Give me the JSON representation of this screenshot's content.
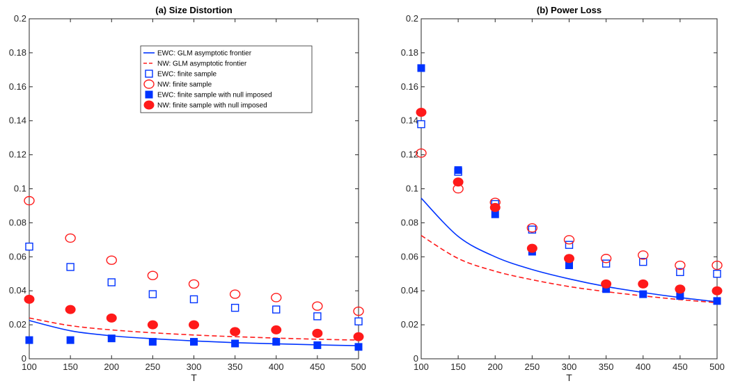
{
  "colors": {
    "ewc": "#0033ff",
    "nw": "#ff1a1a",
    "axis": "#262626"
  },
  "legend": {
    "placement": "upper-right of panel (a)",
    "items": [
      {
        "label": "EWC: GLM asymptotic frontier",
        "marker": "solid-line",
        "color": "#0033ff"
      },
      {
        "label": "NW: GLM asymptotic frontier",
        "marker": "dashed-line",
        "color": "#ff1a1a"
      },
      {
        "label": "EWC: finite sample",
        "marker": "open-square",
        "color": "#0033ff"
      },
      {
        "label": "NW: finite sample",
        "marker": "open-circle",
        "color": "#ff1a1a"
      },
      {
        "label": "EWC: finite sample with null imposed",
        "marker": "filled-square",
        "color": "#0033ff"
      },
      {
        "label": "NW: finite sample with null imposed",
        "marker": "filled-circle",
        "color": "#ff1a1a"
      }
    ]
  },
  "chart_data": [
    {
      "type": "scatter",
      "title": "(a) Size Distortion",
      "xlabel": "T",
      "ylabel": "",
      "xlim": [
        100,
        500
      ],
      "ylim": [
        0,
        0.2
      ],
      "xticks": [
        "100",
        "150",
        "200",
        "250",
        "300",
        "350",
        "400",
        "450",
        "500"
      ],
      "yticks": [
        "0",
        "0.02",
        "0.04",
        "0.06",
        "0.08",
        "0.1",
        "0.12",
        "0.14",
        "0.16",
        "0.18",
        "0.2"
      ],
      "grid": false,
      "x": [
        100,
        150,
        200,
        250,
        300,
        350,
        400,
        450,
        500
      ],
      "series": [
        {
          "name": "EWC: GLM asymptotic frontier",
          "style": "solid-line",
          "color": "#0033ff",
          "values": [
            0.0225,
            0.0165,
            0.0135,
            0.0118,
            0.0105,
            0.0095,
            0.0088,
            0.0082,
            0.0077
          ]
        },
        {
          "name": "NW: GLM asymptotic frontier",
          "style": "dashed-line",
          "color": "#ff1a1a",
          "values": [
            0.024,
            0.0195,
            0.017,
            0.0153,
            0.014,
            0.013,
            0.0122,
            0.0115,
            0.011
          ]
        },
        {
          "name": "EWC: finite sample",
          "style": "open-square",
          "color": "#0033ff",
          "values": [
            0.066,
            0.054,
            0.045,
            0.038,
            0.035,
            0.03,
            0.029,
            0.025,
            0.022
          ]
        },
        {
          "name": "NW: finite sample",
          "style": "open-circle",
          "color": "#ff1a1a",
          "values": [
            0.093,
            0.071,
            0.058,
            0.049,
            0.044,
            0.038,
            0.036,
            0.031,
            0.028
          ]
        },
        {
          "name": "EWC: finite sample with null imposed",
          "style": "filled-square",
          "color": "#0033ff",
          "values": [
            0.011,
            0.011,
            0.012,
            0.01,
            0.01,
            0.009,
            0.01,
            0.008,
            0.007
          ]
        },
        {
          "name": "NW: finite sample with null imposed",
          "style": "filled-circle",
          "color": "#ff1a1a",
          "values": [
            0.035,
            0.029,
            0.024,
            0.02,
            0.02,
            0.016,
            0.017,
            0.015,
            0.013
          ]
        }
      ]
    },
    {
      "type": "scatter",
      "title": "(b) Power Loss",
      "xlabel": "T",
      "ylabel": "",
      "xlim": [
        100,
        500
      ],
      "ylim": [
        0,
        0.2
      ],
      "xticks": [
        "100",
        "150",
        "200",
        "250",
        "300",
        "350",
        "400",
        "450",
        "500"
      ],
      "yticks": [
        "0",
        "0.02",
        "0.04",
        "0.06",
        "0.08",
        "0.1",
        "0.12",
        "0.14",
        "0.16",
        "0.18",
        "0.2"
      ],
      "grid": false,
      "x": [
        100,
        150,
        200,
        250,
        300,
        350,
        400,
        450,
        500
      ],
      "series": [
        {
          "name": "EWC: GLM asymptotic frontier",
          "style": "solid-line",
          "color": "#0033ff",
          "values": [
            0.0945,
            0.072,
            0.06,
            0.0525,
            0.047,
            0.0425,
            0.039,
            0.036,
            0.0335
          ]
        },
        {
          "name": "NW: GLM asymptotic frontier",
          "style": "dashed-line",
          "color": "#ff1a1a",
          "values": [
            0.0725,
            0.059,
            0.0515,
            0.0465,
            0.0425,
            0.0395,
            0.037,
            0.0348,
            0.033
          ]
        },
        {
          "name": "EWC: finite sample",
          "style": "open-square",
          "color": "#0033ff",
          "values": [
            0.138,
            0.11,
            0.091,
            0.076,
            0.067,
            0.056,
            0.057,
            0.051,
            0.05
          ]
        },
        {
          "name": "NW: finite sample",
          "style": "open-circle",
          "color": "#ff1a1a",
          "values": [
            0.121,
            0.1,
            0.092,
            0.077,
            0.07,
            0.059,
            0.061,
            0.055,
            0.055
          ]
        },
        {
          "name": "EWC: finite sample with null imposed",
          "style": "filled-square",
          "color": "#0033ff",
          "values": [
            0.171,
            0.111,
            0.085,
            0.063,
            0.055,
            0.041,
            0.038,
            0.037,
            0.034
          ]
        },
        {
          "name": "NW: finite sample with null imposed",
          "style": "filled-circle",
          "color": "#ff1a1a",
          "values": [
            0.145,
            0.104,
            0.089,
            0.065,
            0.059,
            0.044,
            0.044,
            0.041,
            0.04
          ]
        }
      ]
    }
  ]
}
